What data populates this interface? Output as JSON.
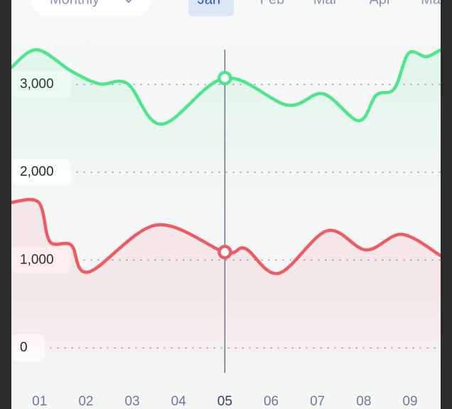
{
  "ui": {
    "period_select": "Monthly",
    "tabs": [
      "Jan",
      "Feb",
      "Mar",
      "Apr",
      "May"
    ]
  },
  "chart_data": {
    "type": "line",
    "x_label_note": null,
    "xlim": [
      0.39,
      9.66
    ],
    "ylim": [
      -695,
      3961
    ],
    "xticks": [
      {
        "value": 1,
        "label": "01"
      },
      {
        "value": 2,
        "label": "02"
      },
      {
        "value": 3,
        "label": "03"
      },
      {
        "value": 4,
        "label": "04"
      },
      {
        "value": 5,
        "label": "05"
      },
      {
        "value": 6,
        "label": "06"
      },
      {
        "value": 7,
        "label": "07"
      },
      {
        "value": 8,
        "label": "08"
      },
      {
        "value": 9,
        "label": "09"
      }
    ],
    "yticks": [
      0,
      {
        "value": 1000,
        "label": "1,000"
      },
      {
        "value": 2000,
        "label": "2,000"
      },
      {
        "value": 3000,
        "label": "3,000"
      }
    ],
    "grid": true,
    "crosshair_x": 5,
    "series": [
      {
        "color": "#4ee68c",
        "x": [
          0.39,
          0.94,
          1.68,
          2.29,
          2.9,
          3.64,
          5.0,
          6.35,
          7.12,
          7.89,
          8.27,
          8.66,
          8.97,
          9.35,
          9.66
        ],
        "values": [
          3193,
          3395,
          3153,
          3007,
          3007,
          2547,
          3072,
          2765,
          2894,
          2587,
          2878,
          2951,
          3355,
          3315,
          3395
        ]
      },
      {
        "color": "#ef5a63",
        "x": [
          0.39,
          0.98,
          1.22,
          1.68,
          2.06,
          3.52,
          5.0,
          5.44,
          6.16,
          7.21,
          8.05,
          8.82,
          9.66
        ],
        "values": [
          1657,
          1657,
          1213,
          1172,
          865,
          1399,
          1091,
          1132,
          849,
          1334,
          1116,
          1293,
          1051
        ]
      }
    ]
  }
}
